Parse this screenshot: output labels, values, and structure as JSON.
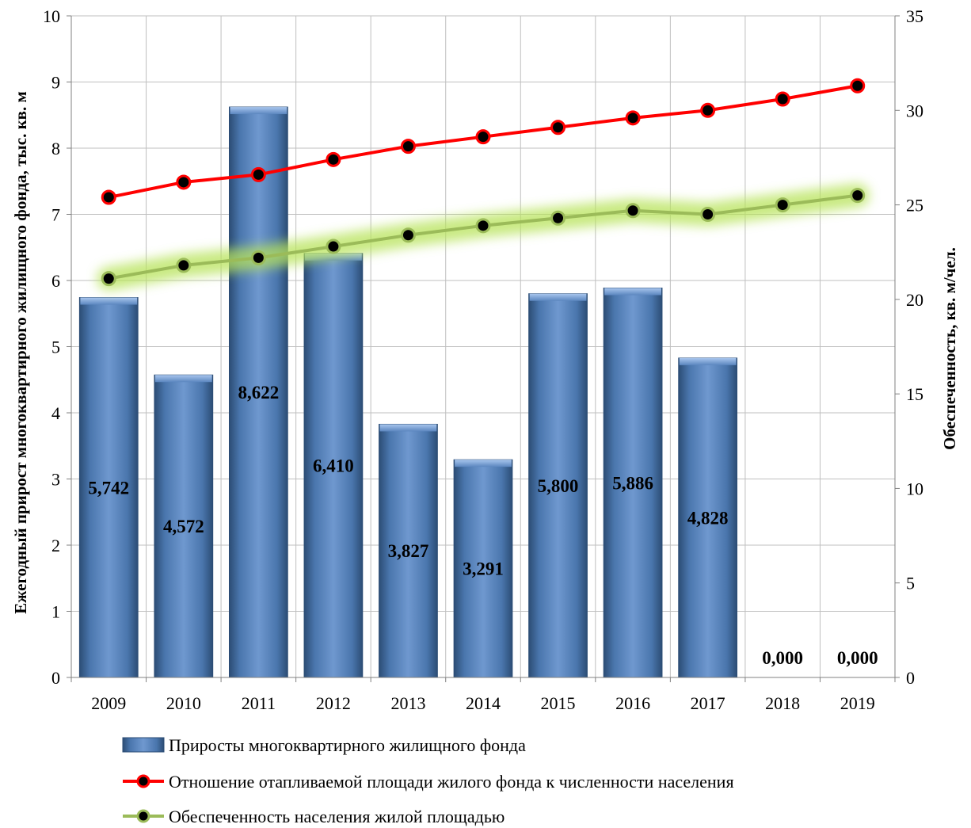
{
  "chart_data": {
    "type": "bar",
    "categories": [
      "2009",
      "2010",
      "2011",
      "2012",
      "2013",
      "2014",
      "2015",
      "2016",
      "2017",
      "2018",
      "2019"
    ],
    "ylabel": "Ежегодный прирост многоквартирного жилищного фонда, тыс. кв. м",
    "y2label": "Обеспеченность, кв. м/чел.",
    "ylim": [
      0,
      10
    ],
    "y2lim": [
      0,
      35
    ],
    "yticks": [
      "0",
      "1",
      "2",
      "3",
      "4",
      "5",
      "6",
      "7",
      "8",
      "9",
      "10"
    ],
    "y2ticks": [
      "0",
      "5",
      "10",
      "15",
      "20",
      "25",
      "30",
      "35"
    ],
    "grid": true,
    "legend_position": "bottom",
    "series": [
      {
        "name": "Приросты многоквартирного жилищного фонда",
        "type": "bar",
        "axis": "left",
        "color": "#4f81bd",
        "values": [
          5.742,
          4.572,
          8.622,
          6.41,
          3.827,
          3.291,
          5.8,
          5.886,
          4.828,
          0,
          0
        ],
        "labels": [
          "5,742",
          "4,572",
          "8,622",
          "6,410",
          "3,827",
          "3,291",
          "5,800",
          "5,886",
          "4,828",
          "0,000",
          "0,000"
        ]
      },
      {
        "name": "Отношение отапливаемой площади жилого фонда к численности населения",
        "type": "line",
        "axis": "right",
        "color": "#ff0000",
        "values": [
          25.4,
          26.2,
          26.6,
          27.4,
          28.1,
          28.6,
          29.1,
          29.6,
          30.0,
          30.6,
          31.3
        ]
      },
      {
        "name": "Обеспеченность населения жилой площадью",
        "type": "line",
        "axis": "right",
        "color": "#9bbb59",
        "values": [
          21.1,
          21.8,
          22.2,
          22.8,
          23.4,
          23.9,
          24.3,
          24.7,
          24.5,
          25.0,
          25.5
        ]
      }
    ]
  }
}
